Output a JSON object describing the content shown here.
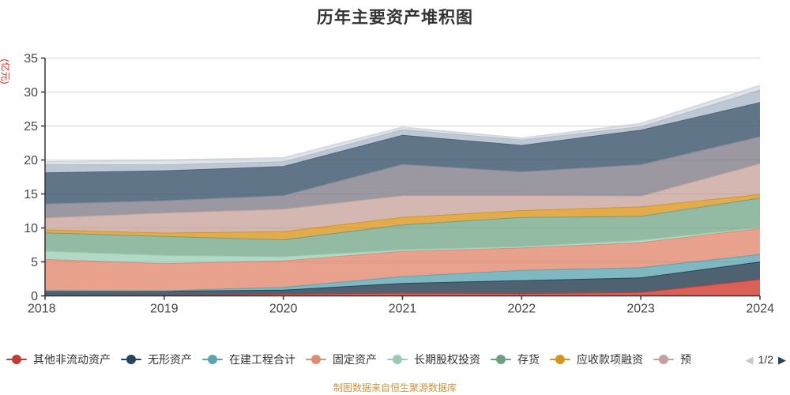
{
  "page": {
    "footer": "制图数据来自恒生聚源数据库"
  },
  "legend": {
    "visible_items": 8,
    "page_text": "1/2",
    "prev_icon": "◀",
    "next_icon": "▶"
  },
  "chart_data": {
    "type": "area",
    "stacked": true,
    "title": "历年主要资产堆积图",
    "ylabel": "(亿元)",
    "ylabel_color": "#e02222",
    "xlabel": "",
    "ylim": [
      0,
      35
    ],
    "ytick_step": 5,
    "grid": true,
    "grid_color": "#e2e6ea",
    "axis_color": "#333333",
    "tick_label_color": "#464646",
    "legend_position": "bottom",
    "categories": [
      "2018",
      "2019",
      "2020",
      "2021",
      "2022",
      "2023",
      "2024"
    ],
    "series": [
      {
        "name": "其他非流动资产",
        "color": "#c23a36",
        "fill": "#d96157",
        "values": [
          0.05,
          0.1,
          0.3,
          0.45,
          0.4,
          0.55,
          2.45
        ]
      },
      {
        "name": "无形资产",
        "color": "#27465c",
        "fill": "#4f6272",
        "values": [
          0.75,
          0.65,
          0.6,
          1.45,
          1.9,
          2.15,
          2.6
        ]
      },
      {
        "name": "在建工程合计",
        "color": "#5ba4b0",
        "fill": "#7fb8c0",
        "values": [
          0.02,
          0.05,
          0.4,
          1.0,
          1.5,
          1.5,
          1.1
        ]
      },
      {
        "name": "固定资产",
        "color": "#dd8d75",
        "fill": "#e8a18c",
        "values": [
          4.6,
          4.0,
          3.9,
          3.7,
          3.3,
          3.7,
          3.8
        ]
      },
      {
        "name": "长期股权投资",
        "color": "#9acbb3",
        "fill": "#b2d9c6",
        "values": [
          1.2,
          1.2,
          0.6,
          0.25,
          0.2,
          0.35,
          0.15
        ]
      },
      {
        "name": "存货",
        "color": "#6f9e85",
        "fill": "#93bba4",
        "values": [
          2.7,
          2.8,
          2.5,
          3.65,
          4.3,
          3.5,
          4.35
        ]
      },
      {
        "name": "应收款项融资",
        "color": "#d6951f",
        "fill": "#e2ab4c",
        "values": [
          0.45,
          0.5,
          1.2,
          1.1,
          1.0,
          1.4,
          0.5
        ]
      },
      {
        "name": "预付款项",
        "color": "#c2a29c",
        "fill": "#d5b7b1",
        "values": [
          1.75,
          2.95,
          3.3,
          3.2,
          2.2,
          1.6,
          4.55
        ],
        "label_clipped": true
      },
      {
        "name": "",
        "color": "#8e8b96",
        "fill": "#9b98a2",
        "values": [
          2.05,
          1.8,
          2.0,
          4.6,
          3.5,
          4.6,
          3.95
        ]
      },
      {
        "name": "",
        "color": "#4f6478",
        "fill": "#607587",
        "values": [
          4.6,
          4.4,
          4.3,
          4.3,
          3.9,
          5.1,
          5.05
        ]
      },
      {
        "name": "",
        "color": "#b0bdcc",
        "fill": "#bec8d4",
        "values": [
          1.2,
          0.9,
          0.7,
          0.8,
          0.8,
          0.5,
          1.85
        ]
      },
      {
        "name": "",
        "color": "#d3d9df",
        "fill": "#e0e4e9",
        "values": [
          0.35,
          0.6,
          0.5,
          0.3,
          0.2,
          0.4,
          0.6
        ]
      }
    ]
  }
}
